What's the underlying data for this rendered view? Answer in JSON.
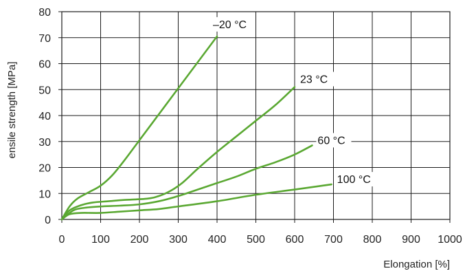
{
  "chart_data": {
    "type": "line",
    "title": "",
    "xlabel": "Elongation [%]",
    "ylabel": "ensile strength [MPa]",
    "xlim": [
      0,
      1000
    ],
    "ylim": [
      0,
      80
    ],
    "x_ticks": [
      "0",
      "100",
      "200",
      "300",
      "400",
      "500",
      "600",
      "700",
      "800",
      "900",
      "1000"
    ],
    "y_ticks": [
      "0",
      "10",
      "20",
      "30",
      "40",
      "50",
      "60",
      "70",
      "80"
    ],
    "grid": true,
    "legend": "none",
    "line_color": "#5aa832",
    "series": [
      {
        "name": "–20 °C",
        "points": [
          [
            0,
            0
          ],
          [
            20,
            5
          ],
          [
            40,
            8
          ],
          [
            70,
            10.5
          ],
          [
            100,
            13
          ],
          [
            130,
            17
          ],
          [
            160,
            22.5
          ],
          [
            200,
            30.5
          ],
          [
            250,
            40.5
          ],
          [
            300,
            50.5
          ],
          [
            350,
            60.5
          ],
          [
            400,
            70.5
          ]
        ]
      },
      {
        "name": "23 °C",
        "points": [
          [
            0,
            0
          ],
          [
            20,
            3.5
          ],
          [
            50,
            5.5
          ],
          [
            80,
            6.5
          ],
          [
            120,
            7
          ],
          [
            160,
            7.5
          ],
          [
            220,
            8
          ],
          [
            250,
            9
          ],
          [
            280,
            11
          ],
          [
            310,
            14
          ],
          [
            350,
            19.5
          ],
          [
            400,
            26
          ],
          [
            450,
            32
          ],
          [
            500,
            38
          ],
          [
            550,
            44
          ],
          [
            600,
            51
          ]
        ]
      },
      {
        "name": "60 °C",
        "points": [
          [
            0,
            0
          ],
          [
            30,
            3.5
          ],
          [
            60,
            4.5
          ],
          [
            100,
            5
          ],
          [
            150,
            5.3
          ],
          [
            200,
            5.8
          ],
          [
            250,
            7
          ],
          [
            300,
            9
          ],
          [
            350,
            11.5
          ],
          [
            400,
            14
          ],
          [
            450,
            16.5
          ],
          [
            500,
            19.5
          ],
          [
            550,
            22
          ],
          [
            600,
            25
          ],
          [
            645,
            28.5
          ]
        ]
      },
      {
        "name": "100 °C",
        "points": [
          [
            0,
            0
          ],
          [
            20,
            2
          ],
          [
            50,
            2.5
          ],
          [
            100,
            2.5
          ],
          [
            150,
            3
          ],
          [
            200,
            3.5
          ],
          [
            250,
            4
          ],
          [
            300,
            5
          ],
          [
            400,
            7
          ],
          [
            500,
            9.5
          ],
          [
            600,
            11.5
          ],
          [
            695,
            13.5
          ]
        ]
      }
    ]
  }
}
